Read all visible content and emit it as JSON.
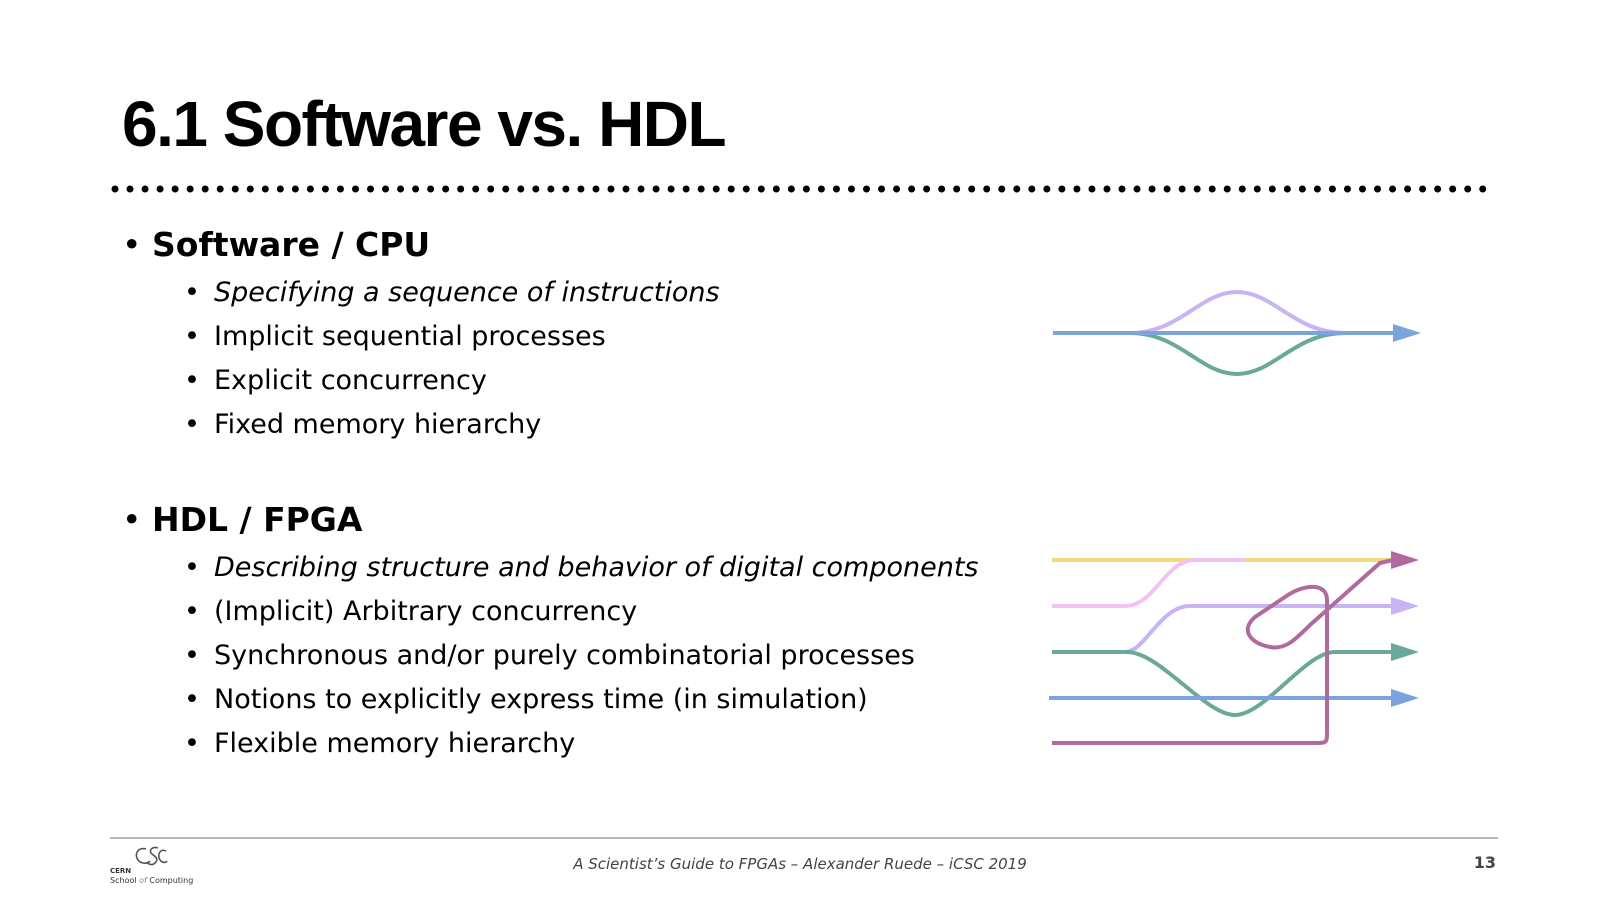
{
  "slide": {
    "title": "6.1 Software vs. HDL"
  },
  "sections": [
    {
      "heading": "Software / CPU",
      "items": [
        "Specifying a sequence of instructions",
        "Implicit sequential processes",
        "Explicit concurrency",
        "Fixed memory hierarchy"
      ]
    },
    {
      "heading": "HDL / FPGA",
      "items": [
        "Describing structure and behavior of digital components",
        "(Implicit) Arbitrary concurrency",
        "Synchronous and/or purely combinatorial processes",
        "Notions to explicitly express time (in simulation)",
        "Flexible memory hierarchy"
      ]
    }
  ],
  "colors": {
    "blue": "#7ba3dc",
    "lavender": "#c8b4f5",
    "teal": "#6aa89a",
    "yellow": "#f5d97a",
    "pink": "#f3c2f5",
    "purple": "#b06a9e"
  },
  "footer": {
    "text": "A Scientist’s Guide to FPGAs – Alexander Ruede – iCSC 2019",
    "page_number": "13",
    "logo_cern": "CERN",
    "logo_school": "School",
    "logo_of": "of",
    "logo_computing": "Computing"
  }
}
